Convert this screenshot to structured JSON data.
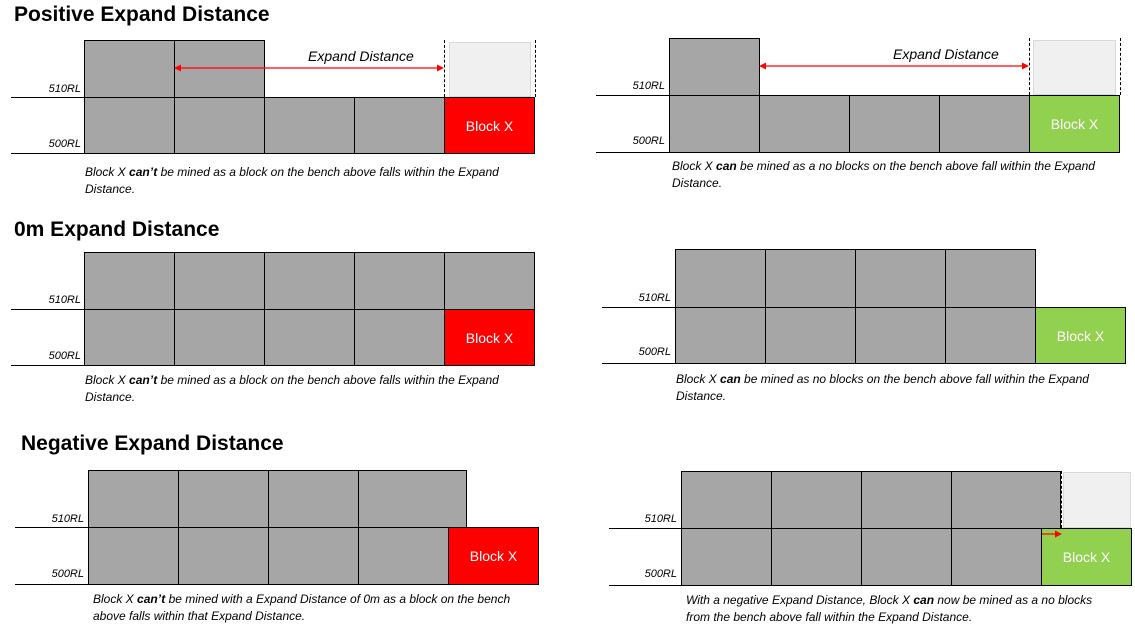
{
  "sections": {
    "positive": {
      "title": "Positive Expand Distance"
    },
    "zero": {
      "title": "0m Expand Distance"
    },
    "negative": {
      "title": "Negative Expand Distance"
    }
  },
  "labels": {
    "upper": "510RL",
    "lower": "500RL",
    "block_x": "Block X",
    "expand_distance": "Expand Distance"
  },
  "captions": {
    "pos_left": {
      "pre": "Block X ",
      "bold": "can’t",
      "post": " be mined as a block on the bench above falls within the Expand Distance."
    },
    "pos_right": {
      "pre": "Block X ",
      "bold": "can",
      "post": " be mined as a no blocks on the bench above fall within the Expand Distance."
    },
    "zero_left": {
      "pre": "Block X ",
      "bold": "can’t",
      "post": " be mined as a block on the bench above falls within the Expand Distance."
    },
    "zero_right": {
      "pre": "Block X ",
      "bold": "can",
      "post": " be mined as no blocks on the bench above fall within the Expand Distance."
    },
    "neg_left": {
      "pre": "Block X ",
      "bold": "can’t",
      "post": " be mined with a Expand Distance of 0m as a block on the bench above falls within that Expand Distance."
    },
    "neg_right": {
      "pre": "With a negative Expand Distance, Block X ",
      "bold": "can",
      "post": " now be mined as a no blocks from the bench above fall within the Expand Distance."
    }
  },
  "colors": {
    "block": "#a6a6a6",
    "block_x_fail": "#ff0000",
    "block_x_pass": "#92d050",
    "ghost": "#f0f0f0",
    "arrow": "#ff0000"
  }
}
